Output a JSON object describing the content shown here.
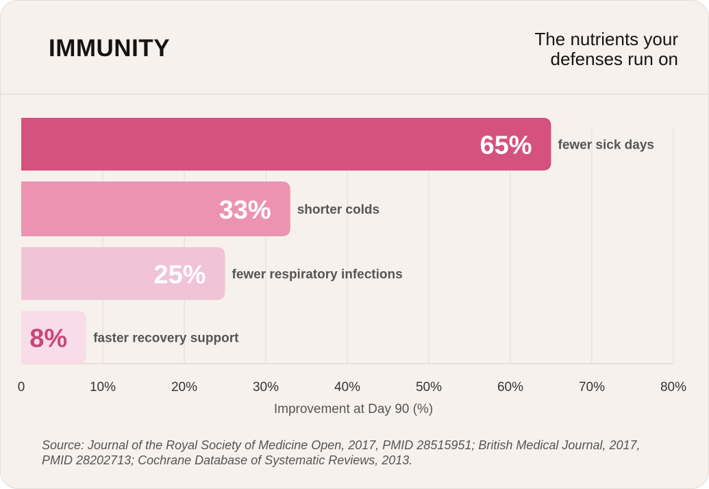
{
  "header": {
    "title": "IMMUNITY",
    "subtitle": "The nutrients your defenses run on"
  },
  "chart_data": {
    "type": "bar",
    "orientation": "horizontal",
    "categories": [
      "fewer sick days",
      "shorter colds",
      "fewer respiratory infections",
      "faster recovery support"
    ],
    "values": [
      65,
      33,
      25,
      8
    ],
    "data_labels": [
      "65%",
      "33%",
      "25%",
      "8%"
    ],
    "bar_colors": [
      "#d4527d",
      "#ec93b1",
      "#f1c3d6",
      "#f8dde8"
    ],
    "label_colors": [
      "#ffffff",
      "#ffffff",
      "#ffffff",
      "#c94877"
    ],
    "xlabel": "Improvement at Day 90 (%)",
    "xlim": [
      0,
      80
    ],
    "xticks": [
      0,
      10,
      20,
      30,
      40,
      50,
      60,
      70,
      80
    ],
    "xtick_labels": [
      "0",
      "10%",
      "20%",
      "30%",
      "40%",
      "50%",
      "60%",
      "70%",
      "80%"
    ],
    "grid": true
  },
  "footer": {
    "source_label": "Source:",
    "source_text": " Journal of the Royal Society of Medicine Open, 2017, PMID 28515951; British Medical Journal, 2017, PMID 28202713; Cochrane Database of Systematic Reviews, 2013."
  }
}
